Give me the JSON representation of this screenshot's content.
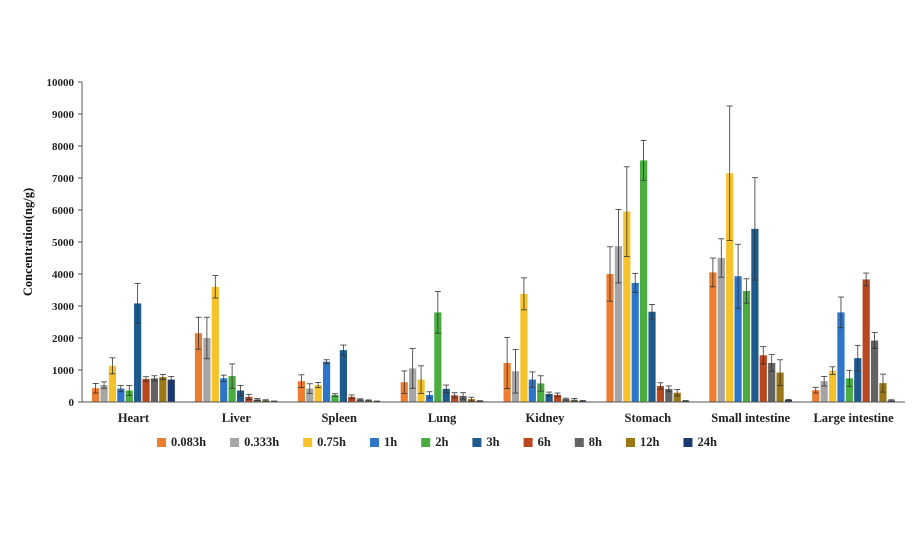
{
  "colors": {
    "background": "#ffffff",
    "axis": "#555555",
    "errorbar": "#333333",
    "series": [
      "#ED7D31",
      "#A5A5A5",
      "#F5C22B",
      "#2E75C8",
      "#4BAD3F",
      "#1F5A8C",
      "#B9471F",
      "#636363",
      "#9C7716",
      "#1B3970"
    ]
  },
  "chart_data": {
    "type": "bar",
    "title": "",
    "xlabel": "",
    "ylabel": "Concentration(ng/g)",
    "ylim": [
      0,
      10000
    ],
    "yticks": [
      0,
      1000,
      2000,
      3000,
      4000,
      5000,
      6000,
      7000,
      8000,
      9000,
      10000
    ],
    "grid": false,
    "legend_position": "bottom",
    "error_bars": true,
    "categories": [
      "Heart",
      "Liver",
      "Spleen",
      "Lung",
      "Kidney",
      "Stomach",
      "Small intestine",
      "Large intestine"
    ],
    "series": [
      {
        "name": "0.083h",
        "values": [
          430,
          2150,
          650,
          620,
          1220,
          4000,
          4050,
          370
        ],
        "errors": [
          150,
          500,
          200,
          350,
          800,
          850,
          450,
          90
        ]
      },
      {
        "name": "0.333h",
        "values": [
          530,
          2000,
          420,
          1050,
          960,
          4870,
          4500,
          650
        ],
        "errors": [
          100,
          650,
          150,
          620,
          680,
          1150,
          600,
          150
        ]
      },
      {
        "name": "0.75h",
        "values": [
          1130,
          3600,
          530,
          700,
          3380,
          5950,
          7150,
          980
        ],
        "errors": [
          250,
          350,
          80,
          430,
          500,
          1400,
          2100,
          120
        ]
      },
      {
        "name": "1h",
        "values": [
          420,
          740,
          1260,
          220,
          700,
          3720,
          3930,
          2800
        ],
        "errors": [
          100,
          100,
          60,
          100,
          240,
          300,
          1000,
          480
        ]
      },
      {
        "name": "2h",
        "values": [
          360,
          810,
          220,
          2800,
          580,
          7550,
          3470,
          740
        ],
        "errors": [
          160,
          380,
          40,
          650,
          240,
          620,
          380,
          250
        ]
      },
      {
        "name": "3h",
        "values": [
          3080,
          360,
          1620,
          410,
          250,
          2820,
          5410,
          1370
        ],
        "errors": [
          620,
          160,
          160,
          120,
          60,
          230,
          1600,
          400
        ]
      },
      {
        "name": "6h",
        "values": [
          720,
          160,
          160,
          210,
          220,
          500,
          1460,
          3830
        ],
        "errors": [
          70,
          80,
          60,
          80,
          60,
          100,
          270,
          200
        ]
      },
      {
        "name": "8h",
        "values": [
          740,
          80,
          80,
          190,
          90,
          410,
          1220,
          1920
        ],
        "errors": [
          80,
          30,
          20,
          100,
          30,
          90,
          260,
          250
        ]
      },
      {
        "name": "12h",
        "values": [
          780,
          50,
          50,
          90,
          70,
          290,
          920,
          590
        ],
        "errors": [
          80,
          20,
          15,
          60,
          40,
          100,
          400,
          280
        ]
      },
      {
        "name": "24h",
        "values": [
          700,
          20,
          20,
          30,
          30,
          30,
          60,
          50
        ],
        "errors": [
          100,
          10,
          10,
          10,
          15,
          15,
          20,
          20
        ]
      }
    ]
  }
}
